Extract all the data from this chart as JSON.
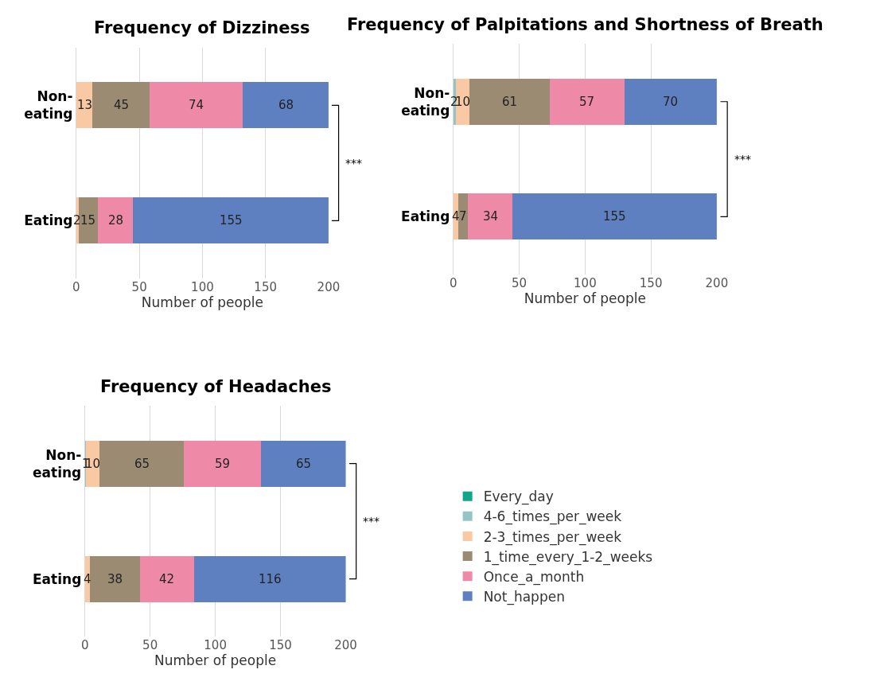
{
  "chart_data": [
    {
      "type": "bar",
      "orientation": "horizontal",
      "stacked": true,
      "title": "Frequency of Dizziness",
      "xlabel": "Number of people",
      "categories": [
        "Non-eating",
        "Eating"
      ],
      "xlim": [
        0,
        200
      ],
      "xticks": [
        0,
        50,
        100,
        150,
        200
      ],
      "grid": "x",
      "data_labels": true,
      "annotations": [
        "***"
      ],
      "series": [
        {
          "color": "#13a589",
          "values": [
            null,
            null
          ]
        },
        {
          "color": "#93c4c6",
          "values": [
            null,
            null
          ]
        },
        {
          "color": "#f8c9a3",
          "values": [
            13,
            2
          ]
        },
        {
          "color": "#9c8b73",
          "values": [
            45,
            15
          ]
        },
        {
          "color": "#ee8aa8",
          "values": [
            74,
            28
          ]
        },
        {
          "color": "#5e80c0",
          "values": [
            68,
            155
          ]
        }
      ]
    },
    {
      "type": "bar",
      "orientation": "horizontal",
      "stacked": true,
      "title": "Frequency of Palpitations and Shortness of Breath",
      "xlabel": "Number of people",
      "categories": [
        "Non-eating",
        "Eating"
      ],
      "xlim": [
        0,
        200
      ],
      "xticks": [
        0,
        50,
        100,
        150,
        200
      ],
      "grid": "x",
      "data_labels": true,
      "annotations": [
        "***"
      ],
      "series": [
        {
          "color": "#13a589",
          "values": [
            null,
            null
          ]
        },
        {
          "color": "#93c4c6",
          "values": [
            2,
            null
          ]
        },
        {
          "color": "#f8c9a3",
          "values": [
            10,
            4
          ]
        },
        {
          "color": "#9c8b73",
          "values": [
            61,
            7
          ]
        },
        {
          "color": "#ee8aa8",
          "values": [
            57,
            34
          ]
        },
        {
          "color": "#5e80c0",
          "values": [
            70,
            155
          ]
        }
      ]
    },
    {
      "type": "bar",
      "orientation": "horizontal",
      "stacked": true,
      "title": "Frequency of Headaches",
      "xlabel": "Number of people",
      "categories": [
        "Non-eating",
        "Eating"
      ],
      "xlim": [
        0,
        200
      ],
      "xticks": [
        0,
        50,
        100,
        150,
        200
      ],
      "grid": "x",
      "data_labels": true,
      "legend": "right",
      "annotations": [
        "***"
      ],
      "series": [
        {
          "name": "Every_day",
          "color": "#13a589",
          "values": [
            null,
            null
          ]
        },
        {
          "name": "4-6_times_per_week",
          "color": "#93c4c6",
          "values": [
            1,
            null
          ]
        },
        {
          "name": "2-3_times_per_week",
          "color": "#f8c9a3",
          "values": [
            10,
            4
          ]
        },
        {
          "name": "1_time_every_1-2_weeks",
          "color": "#9c8b73",
          "values": [
            65,
            38
          ]
        },
        {
          "name": "Once_a_month",
          "color": "#ee8aa8",
          "values": [
            59,
            42
          ]
        },
        {
          "name": "Not_happen",
          "color": "#5e80c0",
          "values": [
            65,
            116
          ]
        }
      ]
    }
  ]
}
